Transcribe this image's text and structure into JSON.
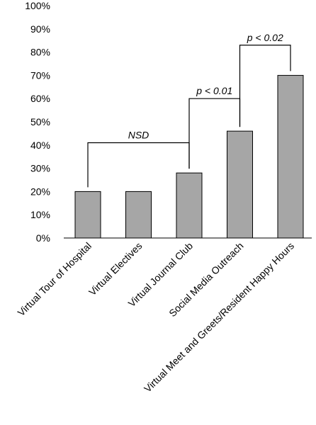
{
  "chart_data": {
    "type": "bar",
    "categories": [
      "Virtual Tour of Hospital",
      "Virtual Electives",
      "Virtual Journal Club",
      "Social Media Outreach",
      "Virtual Meet and Greets/Resident Happy Hours"
    ],
    "values": [
      20,
      20,
      28,
      46,
      70
    ],
    "ylim": [
      0,
      100
    ],
    "yticks": [
      "0%",
      "10%",
      "20%",
      "30%",
      "40%",
      "50%",
      "60%",
      "70%",
      "80%",
      "90%",
      "100%"
    ],
    "grid": false,
    "bar_color": "#a6a6a6",
    "annotations": [
      {
        "label": "NSD",
        "from": 0,
        "to": 2,
        "y": 41
      },
      {
        "label": "p < 0.01",
        "from": 2,
        "to": 3,
        "y": 60
      },
      {
        "label": "p < 0.02",
        "from": 3,
        "to": 4,
        "y": 83
      }
    ]
  }
}
